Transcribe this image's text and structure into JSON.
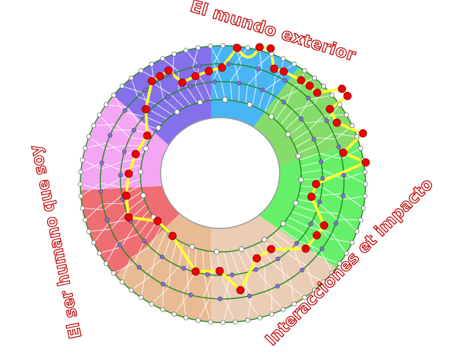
{
  "labels": {
    "top": "El mundo exterior",
    "right": "Interacciones et impacto",
    "left": "El ser humano que soy"
  },
  "colors": {
    "label_outline": "#c00000",
    "ring_line": "#1e8c1e",
    "path": "#ffff33",
    "highlight_node": "#ee0000",
    "inner_node": "#7f6fe0",
    "edge_node": "#ffffff",
    "sectors": [
      "#8470ea",
      "#4ab5f5",
      "#86dc6a",
      "#66f06a",
      "#ebcdb6",
      "#e8bb94",
      "#ee6e73",
      "#f4a6f4"
    ]
  }
}
